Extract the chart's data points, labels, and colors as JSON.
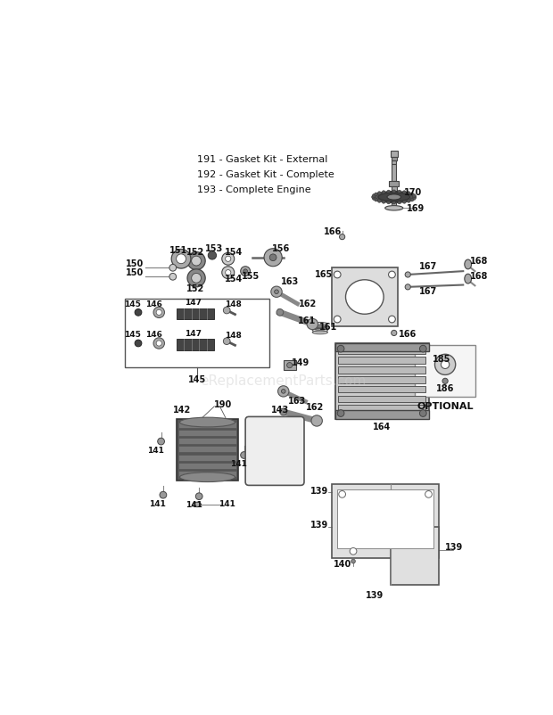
{
  "bg_color": "#ffffff",
  "watermark": "eReplacementParts.com",
  "legend_items": [
    "191 - Gasket Kit - External",
    "192 - Gasket Kit - Complete",
    "193 - Complete Engine"
  ],
  "optional_label": "OPTIONAL",
  "fig_w": 6.2,
  "fig_h": 8.02,
  "dpi": 100
}
